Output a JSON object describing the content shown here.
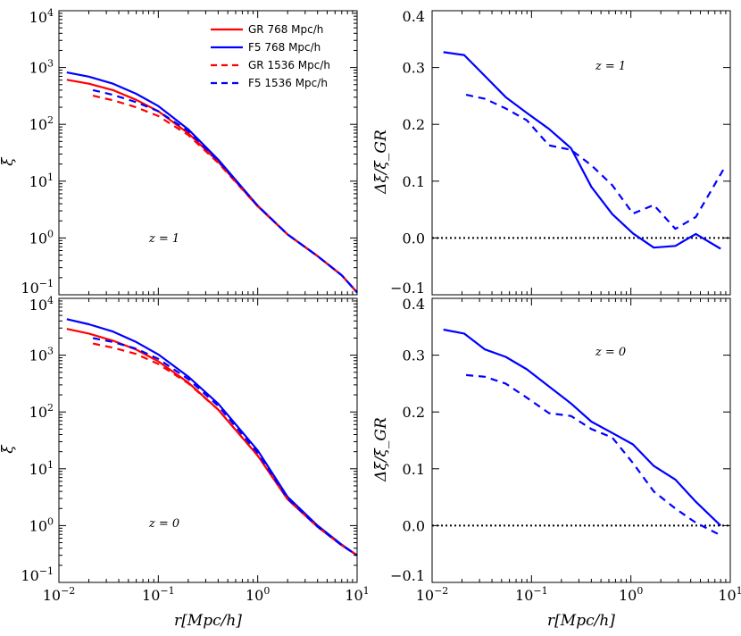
{
  "figure": {
    "xlabel": "r[Mpc/h]",
    "colors": {
      "GR": "#ff0000",
      "F5": "#0000ff",
      "ref": "#000000"
    }
  },
  "legend": [
    {
      "label": "GR 768 Mpc/h",
      "model": "GR",
      "style": "solid"
    },
    {
      "label": "F5 768 Mpc/h",
      "model": "F5",
      "style": "solid"
    },
    {
      "label": "GR 1536 Mpc/h",
      "model": "GR",
      "style": "dashed"
    },
    {
      "label": "F5 1536 Mpc/h",
      "model": "F5",
      "style": "dashed"
    }
  ],
  "chart_data": [
    {
      "type": "line",
      "id": "xi-z1",
      "yscale": "log",
      "xlim": [
        0.01,
        10
      ],
      "ylim": [
        0.1,
        10000
      ],
      "xticks": [
        0.01,
        0.1,
        1,
        10
      ],
      "yticks": [
        0.1,
        1,
        10,
        100,
        1000,
        10000
      ],
      "ylabel": "ξ",
      "annotation": "z = 1",
      "series": [
        {
          "name": "GR 768 Mpc/h",
          "model": "GR",
          "style": "solid",
          "x": [
            0.012,
            0.02,
            0.035,
            0.06,
            0.1,
            0.2,
            0.4,
            1,
            2,
            4,
            7,
            10
          ],
          "y": [
            610,
            520,
            400,
            270,
            170,
            70,
            22,
            3.6,
            1.15,
            0.48,
            0.22,
            0.11
          ]
        },
        {
          "name": "F5 768 Mpc/h",
          "model": "F5",
          "style": "solid",
          "x": [
            0.012,
            0.02,
            0.035,
            0.06,
            0.1,
            0.2,
            0.4,
            1,
            2,
            4,
            7,
            10
          ],
          "y": [
            820,
            690,
            520,
            345,
            210,
            82,
            24,
            3.7,
            1.15,
            0.48,
            0.22,
            0.11
          ]
        },
        {
          "name": "GR 1536 Mpc/h",
          "model": "GR",
          "style": "dashed",
          "x": [
            0.022,
            0.035,
            0.06,
            0.1,
            0.2,
            0.4,
            1,
            2,
            4,
            7,
            10
          ],
          "y": [
            320,
            265,
            200,
            140,
            65,
            21,
            3.6,
            1.15,
            0.48,
            0.22,
            0.11
          ]
        },
        {
          "name": "F5 1536 Mpc/h",
          "model": "F5",
          "style": "dashed",
          "x": [
            0.022,
            0.035,
            0.06,
            0.1,
            0.2,
            0.4,
            1,
            2,
            4,
            7,
            10
          ],
          "y": [
            400,
            330,
            245,
            170,
            76,
            23,
            3.7,
            1.15,
            0.48,
            0.22,
            0.11
          ]
        }
      ]
    },
    {
      "type": "line",
      "id": "dxi-z1",
      "yscale": "linear",
      "xlim": [
        0.01,
        10
      ],
      "ylim": [
        -0.1,
        0.4
      ],
      "xticks": [
        0.01,
        0.1,
        1,
        10
      ],
      "yticks": [
        -0.1,
        0.0,
        0.1,
        0.2,
        0.3,
        0.4
      ],
      "ytick_labels": [
        "−0.1",
        "0.0",
        "0.1",
        "0.2",
        "0.3",
        "0.4"
      ],
      "ylabel": "Δξ/ξ_GR",
      "annotation": "z = 1",
      "reference_line": 0.0,
      "series": [
        {
          "name": "768 Mpc/h",
          "model": "F5",
          "style": "solid",
          "x": [
            0.013,
            0.021,
            0.034,
            0.055,
            0.09,
            0.15,
            0.25,
            0.4,
            0.65,
            1.05,
            1.7,
            2.8,
            4.5,
            8.0
          ],
          "y": [
            0.327,
            0.322,
            0.285,
            0.248,
            0.22,
            0.192,
            0.158,
            0.09,
            0.042,
            0.008,
            -0.017,
            -0.014,
            0.007,
            -0.019
          ]
        },
        {
          "name": "1536 Mpc/h",
          "model": "F5",
          "style": "dashed",
          "x": [
            0.022,
            0.034,
            0.055,
            0.09,
            0.15,
            0.25,
            0.4,
            0.65,
            1.05,
            1.7,
            2.8,
            4.5,
            8.5
          ],
          "y": [
            0.252,
            0.245,
            0.228,
            0.207,
            0.163,
            0.155,
            0.128,
            0.093,
            0.043,
            0.058,
            0.016,
            0.037,
            0.12
          ]
        }
      ]
    },
    {
      "type": "line",
      "id": "xi-z0",
      "yscale": "log",
      "xlim": [
        0.01,
        10
      ],
      "ylim": [
        0.1,
        10000
      ],
      "xticks": [
        0.01,
        0.1,
        1,
        10
      ],
      "yticks": [
        0.1,
        1,
        10,
        100,
        1000,
        10000
      ],
      "ylabel": "ξ",
      "annotation": "z = 0",
      "series": [
        {
          "name": "GR 768 Mpc/h",
          "model": "GR",
          "style": "solid",
          "x": [
            0.012,
            0.02,
            0.035,
            0.06,
            0.1,
            0.2,
            0.4,
            1,
            2,
            4,
            7,
            10
          ],
          "y": [
            2900,
            2400,
            1800,
            1250,
            780,
            330,
            110,
            17,
            2.9,
            0.95,
            0.45,
            0.3
          ]
        },
        {
          "name": "F5 768 Mpc/h",
          "model": "F5",
          "style": "solid",
          "x": [
            0.012,
            0.02,
            0.035,
            0.06,
            0.1,
            0.2,
            0.4,
            1,
            2,
            4,
            7,
            10
          ],
          "y": [
            4300,
            3500,
            2600,
            1700,
            1030,
            420,
            140,
            21,
            3.2,
            1.0,
            0.46,
            0.3
          ]
        },
        {
          "name": "GR 1536 Mpc/h",
          "model": "GR",
          "style": "dashed",
          "x": [
            0.022,
            0.035,
            0.06,
            0.1,
            0.2,
            0.4,
            1,
            2,
            4,
            7,
            10
          ],
          "y": [
            1600,
            1350,
            1050,
            700,
            320,
            110,
            17,
            2.9,
            0.95,
            0.45,
            0.3
          ]
        },
        {
          "name": "F5 1536 Mpc/h",
          "model": "F5",
          "style": "dashed",
          "x": [
            0.022,
            0.035,
            0.06,
            0.1,
            0.2,
            0.4,
            1,
            2,
            4,
            7,
            10
          ],
          "y": [
            2000,
            1700,
            1300,
            860,
            380,
            128,
            19,
            3.0,
            0.96,
            0.45,
            0.3
          ]
        }
      ]
    },
    {
      "type": "line",
      "id": "dxi-z0",
      "yscale": "linear",
      "xlim": [
        0.01,
        10
      ],
      "ylim": [
        -0.1,
        0.4
      ],
      "xticks": [
        0.01,
        0.1,
        1,
        10
      ],
      "yticks": [
        -0.1,
        0.0,
        0.1,
        0.2,
        0.3,
        0.4
      ],
      "ytick_labels": [
        "−0.1",
        "0.0",
        "0.1",
        "0.2",
        "0.3",
        "0.4"
      ],
      "ylabel": "Δξ/ξ_GR",
      "annotation": "z = 0",
      "reference_line": 0.0,
      "series": [
        {
          "name": "768 Mpc/h",
          "model": "F5",
          "style": "solid",
          "x": [
            0.013,
            0.021,
            0.034,
            0.055,
            0.09,
            0.15,
            0.25,
            0.4,
            0.65,
            1.05,
            1.7,
            2.8,
            4.5,
            8.0
          ],
          "y": [
            0.345,
            0.338,
            0.31,
            0.297,
            0.275,
            0.245,
            0.215,
            0.183,
            0.163,
            0.143,
            0.105,
            0.081,
            0.042,
            0.0
          ]
        },
        {
          "name": "1536 Mpc/h",
          "model": "F5",
          "style": "dashed",
          "x": [
            0.022,
            0.034,
            0.055,
            0.09,
            0.15,
            0.25,
            0.4,
            0.65,
            1.05,
            1.7,
            2.8,
            4.5,
            8.0
          ],
          "y": [
            0.265,
            0.262,
            0.25,
            0.225,
            0.198,
            0.193,
            0.17,
            0.155,
            0.11,
            0.06,
            0.03,
            0.005,
            -0.017
          ]
        }
      ]
    }
  ]
}
